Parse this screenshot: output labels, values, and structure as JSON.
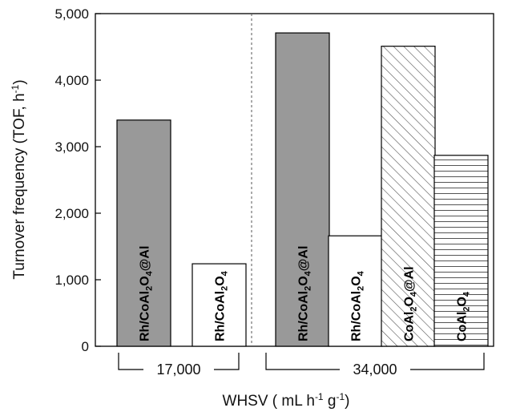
{
  "chart_data": {
    "type": "bar",
    "ylabel_main": "Turnover frequency (TOF, h",
    "ylabel_sup": "-1",
    "ylabel_end": ")",
    "xlabel_parts": {
      "pre": "WHSV ( mL h",
      "sup1": "-1",
      "mid": " g",
      "sup2": "-1",
      "post": ")"
    },
    "ylim": [
      0,
      5000
    ],
    "yticks": [
      0,
      1000,
      2000,
      3000,
      4000,
      5000
    ],
    "ytick_labels": [
      "0",
      "1,000",
      "2,000",
      "3,000",
      "4,000",
      "5,000"
    ],
    "grid": false,
    "groups": [
      {
        "label": "17,000",
        "bars": [
          {
            "catalyst": "Rh/CoAl2O4@Al",
            "value": 3400,
            "pattern": "solid-gray",
            "label_parts": [
              [
                "Rh/CoAl",
                ""
              ],
              [
                "2",
                "sub"
              ],
              [
                "O",
                ""
              ],
              [
                "4",
                "sub"
              ],
              [
                "@Al",
                ""
              ]
            ]
          },
          {
            "catalyst": "Rh/CoAl2O4",
            "value": 1240,
            "pattern": "white",
            "label_parts": [
              [
                "Rh/CoAl",
                ""
              ],
              [
                "2",
                "sub"
              ],
              [
                "O",
                ""
              ],
              [
                "4",
                "sub"
              ]
            ]
          }
        ]
      },
      {
        "label": "34,000",
        "bars": [
          {
            "catalyst": "Rh/CoAl2O4@Al",
            "value": 4710,
            "pattern": "solid-gray",
            "label_parts": [
              [
                "Rh/CoAl",
                ""
              ],
              [
                "2",
                "sub"
              ],
              [
                "O",
                ""
              ],
              [
                "4",
                "sub"
              ],
              [
                "@Al",
                ""
              ]
            ]
          },
          {
            "catalyst": "Rh/CoAl2O4",
            "value": 1660,
            "pattern": "white",
            "label_parts": [
              [
                "Rh/CoAl",
                ""
              ],
              [
                "2",
                "sub"
              ],
              [
                "O",
                ""
              ],
              [
                "4",
                "sub"
              ]
            ]
          },
          {
            "catalyst": "CoAl2O4@Al",
            "value": 4510,
            "pattern": "diagonal-hatch",
            "label_parts": [
              [
                "CoAl",
                ""
              ],
              [
                "2",
                "sub"
              ],
              [
                "O",
                ""
              ],
              [
                "4",
                "sub"
              ],
              [
                "@Al",
                ""
              ]
            ]
          },
          {
            "catalyst": "CoAl2O4",
            "value": 2870,
            "pattern": "horizontal-lines",
            "label_parts": [
              [
                "CoAl",
                ""
              ],
              [
                "2",
                "sub"
              ],
              [
                "O",
                ""
              ],
              [
                "4",
                "sub"
              ]
            ]
          }
        ]
      }
    ],
    "colors": {
      "solid_gray": "#999999",
      "bar_stroke": "#000000",
      "hatch": "#555555",
      "axis": "#000000",
      "divider": "#555555"
    }
  }
}
